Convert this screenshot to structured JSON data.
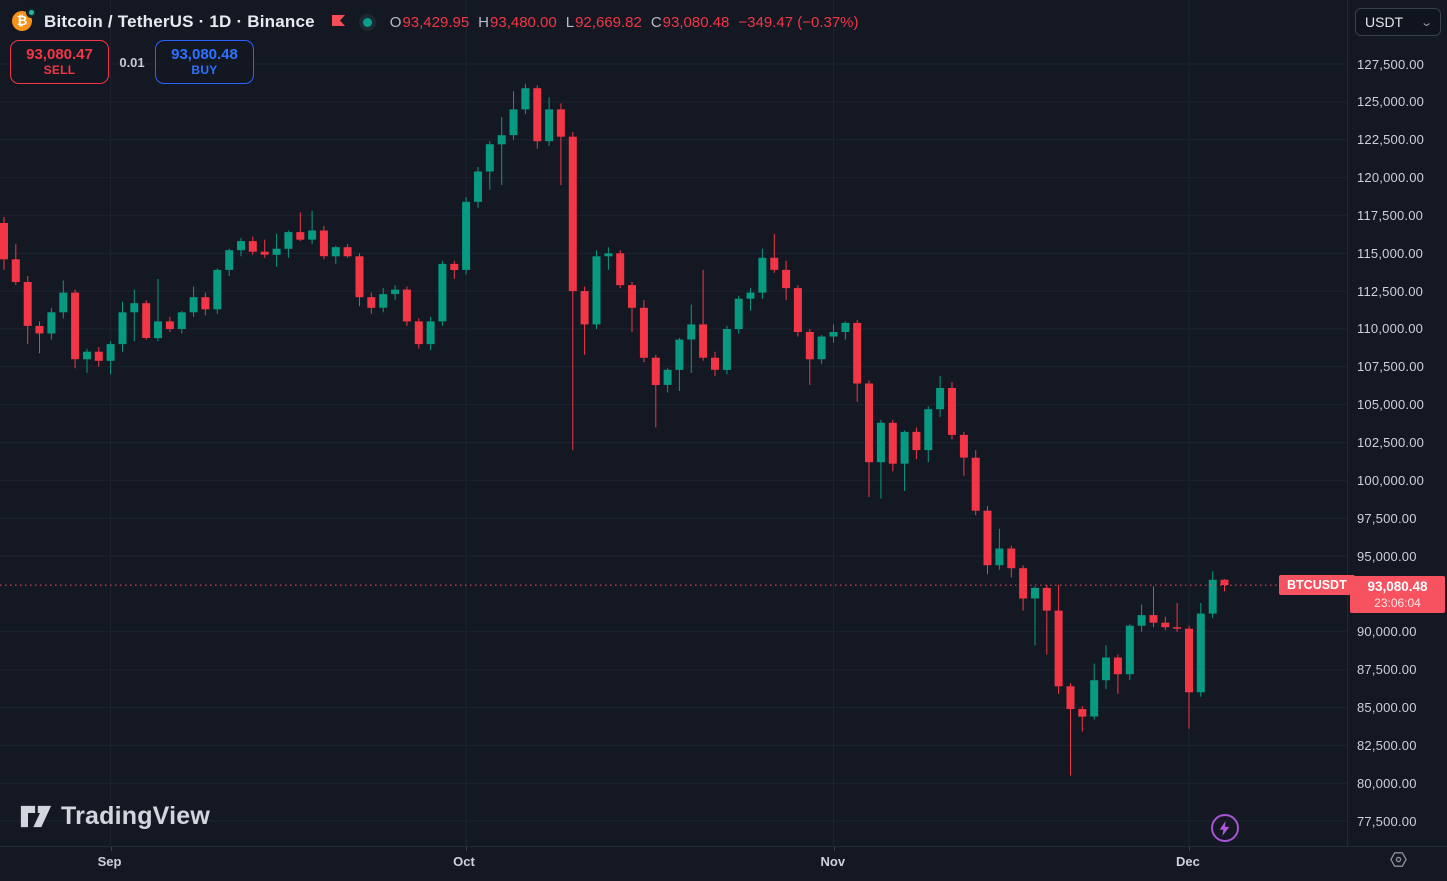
{
  "header": {
    "symbol_title": "Bitcoin / TetherUS · 1D · Binance",
    "ohlc": {
      "o_label": "O",
      "o_value": "93,429.95",
      "h_label": "H",
      "h_value": "93,480.00",
      "l_label": "L",
      "l_value": "92,669.82",
      "c_label": "C",
      "c_value": "93,080.48",
      "change": "−349.47 (−0.37%)"
    }
  },
  "trade_panel": {
    "sell_price": "93,080.47",
    "sell_label": "SELL",
    "spread": "0.01",
    "buy_price": "93,080.48",
    "buy_label": "BUY"
  },
  "price_axis": {
    "currency_selector": "USDT",
    "chevron": "⌄",
    "label_price": "93,080.48",
    "label_countdown": "23:06:04"
  },
  "series_label": "BTCUSDT",
  "watermark_text": "TradingView",
  "icons": {
    "bitcoin_glyph": "₿",
    "flag_icon": "flag-icon",
    "market_status_icon": "market-open-dot",
    "lightning_icon": "lightning-bolt",
    "gear_icon": "axis-settings-hexagon"
  },
  "colors": {
    "background": "#141823",
    "up": "#089981",
    "down": "#f23645",
    "price_label_bg": "#f7525f",
    "buy_blue": "#2962ff",
    "grid": "#1d2231",
    "axis_text": "#cdd1da"
  },
  "chart_data": {
    "type": "candlestick",
    "symbol": "BTCUSDT",
    "exchange": "Binance",
    "interval": "1D",
    "quote_currency": "USDT",
    "current_price": 93080.48,
    "y_axis": {
      "top_tick": 127500,
      "bottom_tick": 77500,
      "tick_step": 2500,
      "hidden_tick": 92500
    },
    "price_ticks": [
      127500,
      125000,
      122500,
      120000,
      117500,
      115000,
      112500,
      110000,
      107500,
      105000,
      102500,
      100000,
      97500,
      95000,
      90000,
      87500,
      85000,
      82500,
      80000,
      77500
    ],
    "months": [
      {
        "label": "Sep",
        "candle_index": 9
      },
      {
        "label": "Oct",
        "candle_index": 39
      },
      {
        "label": "Nov",
        "candle_index": 70
      },
      {
        "label": "Dec",
        "candle_index": 100
      }
    ],
    "candles_format": [
      "open",
      "high",
      "low",
      "close"
    ],
    "candles": [
      [
        117000,
        117400,
        113900,
        114600
      ],
      [
        114600,
        115600,
        112900,
        113100
      ],
      [
        113100,
        113500,
        109000,
        110200
      ],
      [
        110200,
        110500,
        108400,
        109700
      ],
      [
        109700,
        111400,
        109300,
        111100
      ],
      [
        111100,
        113200,
        110700,
        112400
      ],
      [
        112400,
        112600,
        107400,
        108000
      ],
      [
        108000,
        108700,
        107100,
        108500
      ],
      [
        108500,
        108800,
        107500,
        107900
      ],
      [
        107900,
        109200,
        107000,
        109000
      ],
      [
        109000,
        111800,
        108500,
        111100
      ],
      [
        111100,
        112600,
        109200,
        111700
      ],
      [
        111700,
        111900,
        109300,
        109400
      ],
      [
        109400,
        113300,
        109200,
        110500
      ],
      [
        110500,
        110800,
        109800,
        110000
      ],
      [
        110000,
        111200,
        109700,
        111100
      ],
      [
        111100,
        112800,
        110800,
        112100
      ],
      [
        112100,
        112400,
        110900,
        111300
      ],
      [
        111300,
        114000,
        111000,
        113900
      ],
      [
        113900,
        115300,
        113500,
        115200
      ],
      [
        115200,
        116000,
        114800,
        115800
      ],
      [
        115800,
        116100,
        114900,
        115100
      ],
      [
        115100,
        115900,
        114700,
        114900
      ],
      [
        114900,
        116300,
        114100,
        115300
      ],
      [
        115300,
        116500,
        114700,
        116400
      ],
      [
        116400,
        117700,
        115800,
        115900
      ],
      [
        115900,
        117800,
        115600,
        116500
      ],
      [
        116500,
        116800,
        114600,
        114800
      ],
      [
        114800,
        115500,
        114300,
        115400
      ],
      [
        115400,
        115600,
        114700,
        114800
      ],
      [
        114800,
        115000,
        111500,
        112100
      ],
      [
        112100,
        112400,
        111000,
        111400
      ],
      [
        111400,
        112700,
        111100,
        112300
      ],
      [
        112300,
        112900,
        111900,
        112600
      ],
      [
        112600,
        112800,
        110200,
        110500
      ],
      [
        110500,
        110700,
        108700,
        109000
      ],
      [
        109000,
        110800,
        108600,
        110500
      ],
      [
        110500,
        114500,
        110200,
        114300
      ],
      [
        114300,
        114500,
        113300,
        113900
      ],
      [
        113900,
        118700,
        113600,
        118400
      ],
      [
        118400,
        120700,
        118000,
        120400
      ],
      [
        120400,
        122400,
        119200,
        122200
      ],
      [
        122200,
        124000,
        119500,
        122800
      ],
      [
        122800,
        125700,
        122500,
        124500
      ],
      [
        124500,
        126200,
        124200,
        125900
      ],
      [
        125900,
        126100,
        121900,
        122400
      ],
      [
        122400,
        125300,
        122100,
        124500
      ],
      [
        124500,
        124900,
        119500,
        122700
      ],
      [
        122700,
        123000,
        102000,
        112500
      ],
      [
        112500,
        112800,
        108300,
        110300
      ],
      [
        110300,
        115200,
        110000,
        114800
      ],
      [
        114800,
        115400,
        113900,
        115000
      ],
      [
        115000,
        115200,
        112700,
        112900
      ],
      [
        112900,
        113100,
        109800,
        111400
      ],
      [
        111400,
        111900,
        107800,
        108100
      ],
      [
        108100,
        108300,
        103500,
        106300
      ],
      [
        106300,
        107400,
        105800,
        107300
      ],
      [
        107300,
        109400,
        105900,
        109300
      ],
      [
        109300,
        111600,
        107100,
        110300
      ],
      [
        110300,
        113900,
        107900,
        108100
      ],
      [
        108100,
        108500,
        106900,
        107300
      ],
      [
        107300,
        110200,
        107000,
        110000
      ],
      [
        110000,
        112200,
        109700,
        112000
      ],
      [
        112000,
        112700,
        111200,
        112400
      ],
      [
        112400,
        115300,
        112000,
        114700
      ],
      [
        114700,
        116300,
        113700,
        113900
      ],
      [
        113900,
        114500,
        111900,
        112700
      ],
      [
        112700,
        112900,
        109500,
        109800
      ],
      [
        109800,
        110000,
        106300,
        108000
      ],
      [
        108000,
        109600,
        107700,
        109500
      ],
      [
        109500,
        110300,
        109100,
        109800
      ],
      [
        109800,
        110500,
        109300,
        110400
      ],
      [
        110400,
        110600,
        105200,
        106400
      ],
      [
        106400,
        106600,
        98900,
        101200
      ],
      [
        101200,
        104000,
        98800,
        103800
      ],
      [
        103800,
        104000,
        100600,
        101100
      ],
      [
        101100,
        103300,
        99300,
        103200
      ],
      [
        103200,
        103500,
        101400,
        102000
      ],
      [
        102000,
        104900,
        101200,
        104700
      ],
      [
        104700,
        106900,
        104200,
        106100
      ],
      [
        106100,
        106500,
        102700,
        103000
      ],
      [
        103000,
        103200,
        100300,
        101500
      ],
      [
        101500,
        102000,
        97700,
        98000
      ],
      [
        98000,
        98300,
        93800,
        94400
      ],
      [
        94400,
        96800,
        94100,
        95500
      ],
      [
        95500,
        95700,
        93600,
        94200
      ],
      [
        94200,
        94400,
        91400,
        92200
      ],
      [
        92200,
        93000,
        89100,
        92900
      ],
      [
        92900,
        93100,
        88500,
        91400
      ],
      [
        91400,
        93100,
        85900,
        86400
      ],
      [
        86400,
        86600,
        80500,
        84900
      ],
      [
        84900,
        85100,
        83400,
        84400
      ],
      [
        84400,
        87900,
        84200,
        86800
      ],
      [
        86800,
        89100,
        86200,
        88300
      ],
      [
        88300,
        88500,
        85900,
        87200
      ],
      [
        87200,
        90500,
        86800,
        90400
      ],
      [
        90400,
        91800,
        90000,
        91100
      ],
      [
        91100,
        93000,
        90300,
        90600
      ],
      [
        90600,
        91000,
        90100,
        90300
      ],
      [
        90300,
        91900,
        90000,
        90200
      ],
      [
        90200,
        90400,
        83600,
        86000
      ],
      [
        86000,
        91900,
        85700,
        91200
      ],
      [
        91200,
        94000,
        90900,
        93430
      ],
      [
        93429.95,
        93480.0,
        92669.82,
        93080.48
      ]
    ]
  }
}
